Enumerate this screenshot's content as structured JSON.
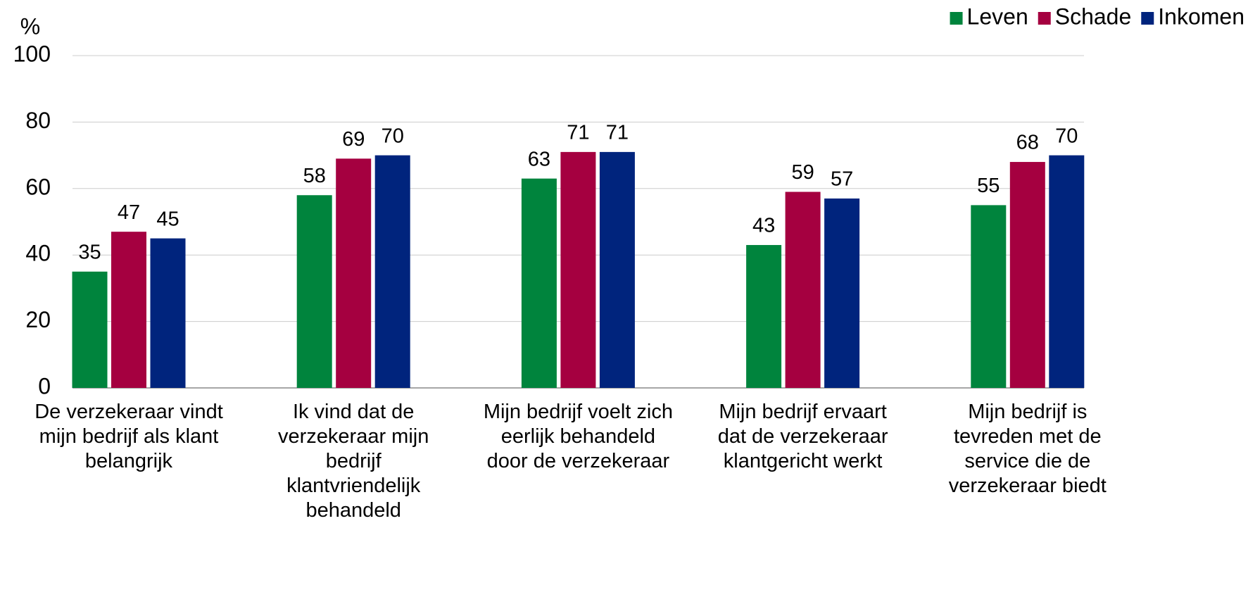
{
  "chart_data": {
    "type": "bar",
    "y_label": "%",
    "categories": [
      "De verzekeraar vindt mijn bedrijf als klant belangrijk",
      "Ik vind dat de verzekeraar mijn bedrijf klantvriendelijk behandeld",
      "Mijn bedrijf voelt zich eerlijk behandeld door de verzekeraar",
      "Mijn bedrijf ervaart dat de verzekeraar klantgericht werkt",
      "Mijn bedrijf is tevreden met de service die de verzekeraar biedt"
    ],
    "series": [
      {
        "name": "Leven",
        "color": "#00843d",
        "values": [
          35,
          58,
          63,
          43,
          55
        ]
      },
      {
        "name": "Schade",
        "color": "#a50040",
        "values": [
          47,
          69,
          71,
          59,
          68
        ]
      },
      {
        "name": "Inkomen",
        "color": "#00247d",
        "values": [
          45,
          70,
          71,
          57,
          70
        ]
      }
    ],
    "ylim": [
      0,
      100
    ],
    "yticks": [
      0,
      20,
      40,
      60,
      80,
      100
    ],
    "grid": true,
    "legend": "top-right"
  }
}
